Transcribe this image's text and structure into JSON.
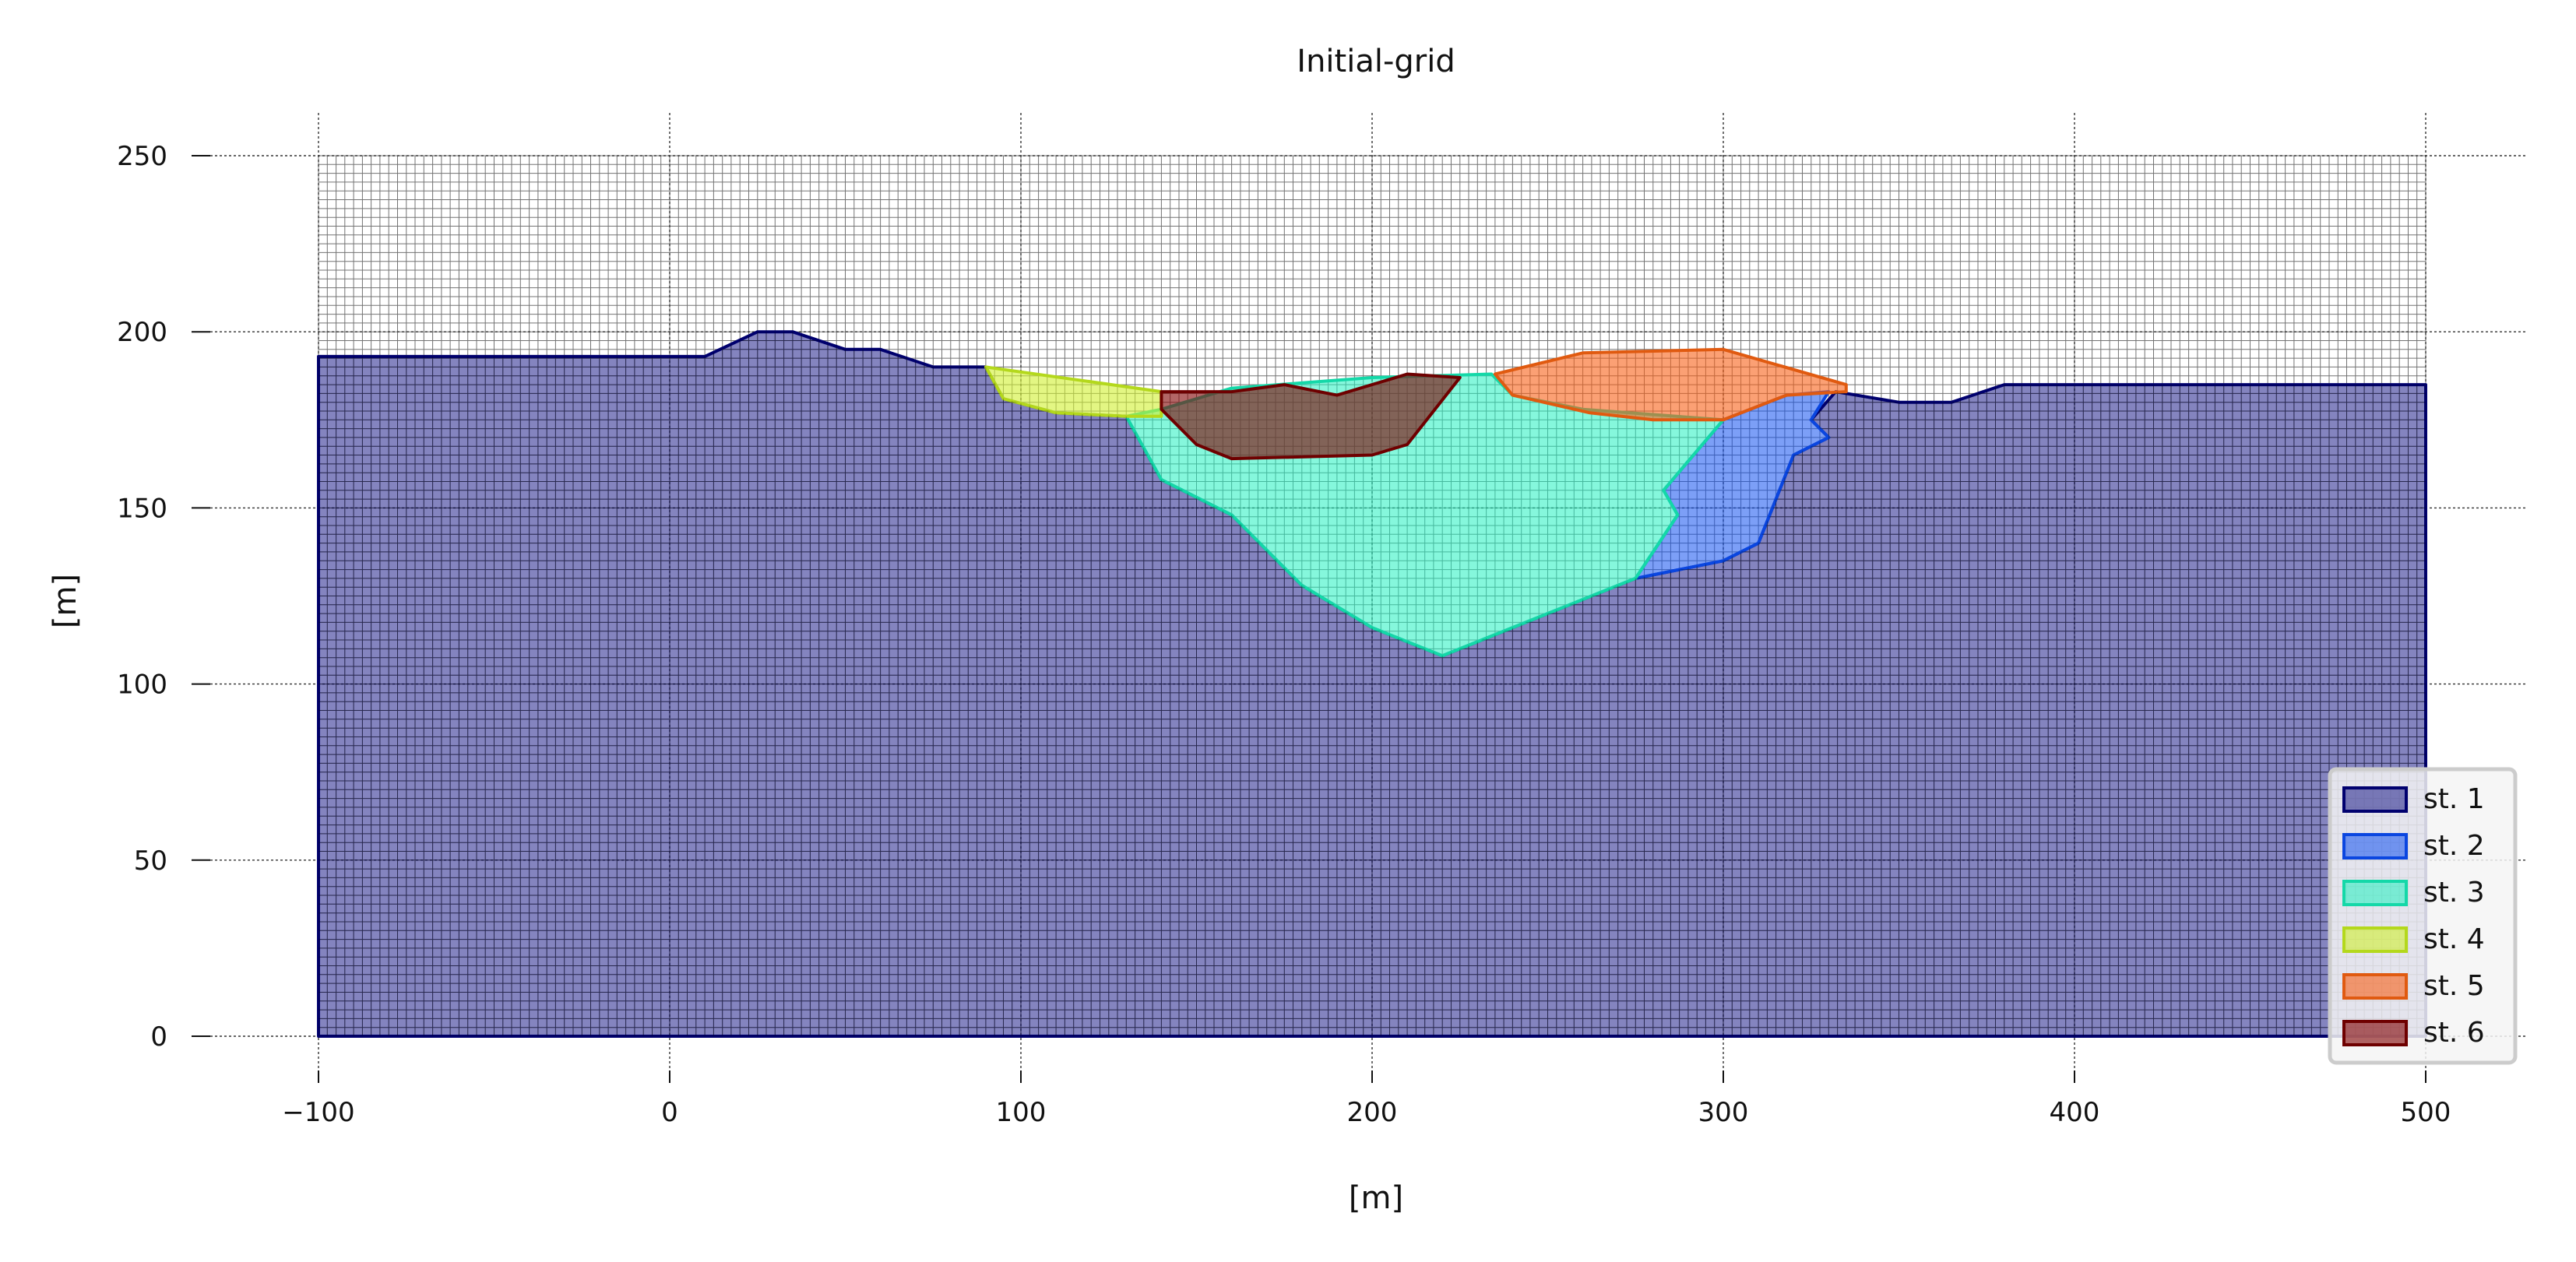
{
  "chart_data": {
    "type": "area",
    "title": "Initial-grid",
    "xlabel": "[m]",
    "ylabel": "[m]",
    "xlim": [
      -130,
      530
    ],
    "ylim": [
      -20,
      265
    ],
    "xticks": [
      -100,
      0,
      100,
      200,
      300,
      400,
      500
    ],
    "yticks": [
      0,
      50,
      100,
      150,
      200,
      250
    ],
    "xtick_labels": [
      "−100",
      "0",
      "100",
      "200",
      "300",
      "400",
      "500"
    ],
    "ytick_labels": [
      "0",
      "50",
      "100",
      "150",
      "200",
      "250"
    ],
    "grid": true,
    "mesh": {
      "x_range": [
        -100,
        500
      ],
      "y_range": [
        0,
        250
      ],
      "dx": 2.5,
      "dy": 2.5,
      "dy_upper": 1.25,
      "refine_above": 160
    },
    "legend": {
      "position": "lower right"
    },
    "series": [
      {
        "name": "st. 1",
        "fill": "#0a0a80",
        "edge": "#00006e",
        "opacity": 0.5,
        "points": [
          [
            -100,
            193
          ],
          [
            10,
            193
          ],
          [
            25,
            200
          ],
          [
            35,
            200
          ],
          [
            50,
            195
          ],
          [
            60,
            195
          ],
          [
            75,
            190
          ],
          [
            90,
            190
          ],
          [
            95,
            181
          ],
          [
            110,
            177
          ],
          [
            130,
            176
          ],
          [
            140,
            158
          ],
          [
            160,
            148
          ],
          [
            180,
            128
          ],
          [
            200,
            116
          ],
          [
            220,
            108
          ],
          [
            250,
            120
          ],
          [
            275,
            130
          ],
          [
            300,
            135
          ],
          [
            310,
            140
          ],
          [
            320,
            165
          ],
          [
            330,
            170
          ],
          [
            325,
            175
          ],
          [
            332,
            183
          ],
          [
            350,
            180
          ],
          [
            365,
            180
          ],
          [
            380,
            185
          ],
          [
            500,
            185
          ],
          [
            500,
            0
          ],
          [
            -100,
            0
          ]
        ]
      },
      {
        "name": "st. 2",
        "fill": "#1050f0",
        "edge": "#0a46e0",
        "opacity": 0.55,
        "points": [
          [
            300,
            175
          ],
          [
            318,
            182
          ],
          [
            330,
            183
          ],
          [
            325,
            175
          ],
          [
            330,
            170
          ],
          [
            320,
            165
          ],
          [
            310,
            140
          ],
          [
            300,
            135
          ],
          [
            275,
            130
          ],
          [
            287,
            148
          ],
          [
            283,
            155
          ]
        ]
      },
      {
        "name": "st. 3",
        "fill": "#20f0c0",
        "edge": "#14d8a8",
        "opacity": 0.55,
        "points": [
          [
            130,
            176
          ],
          [
            140,
            178
          ],
          [
            160,
            184
          ],
          [
            200,
            187
          ],
          [
            234,
            188
          ],
          [
            240,
            182
          ],
          [
            260,
            178
          ],
          [
            300,
            175
          ],
          [
            283,
            155
          ],
          [
            287,
            148
          ],
          [
            275,
            130
          ],
          [
            250,
            120
          ],
          [
            220,
            108
          ],
          [
            200,
            116
          ],
          [
            180,
            128
          ],
          [
            160,
            148
          ],
          [
            140,
            158
          ]
        ]
      },
      {
        "name": "st. 4",
        "fill": "#d0f030",
        "edge": "#b4d81c",
        "opacity": 0.6,
        "points": [
          [
            90,
            190
          ],
          [
            140,
            183
          ],
          [
            140,
            176
          ],
          [
            130,
            176
          ],
          [
            110,
            177
          ],
          [
            95,
            181
          ]
        ]
      },
      {
        "name": "st. 5",
        "fill": "#f86018",
        "edge": "#e05a10",
        "opacity": 0.6,
        "points": [
          [
            235,
            188
          ],
          [
            260,
            194
          ],
          [
            300,
            195
          ],
          [
            335,
            185
          ],
          [
            335,
            183
          ],
          [
            318,
            182
          ],
          [
            300,
            175
          ],
          [
            280,
            175
          ],
          [
            262,
            177
          ],
          [
            240,
            182
          ]
        ]
      },
      {
        "name": "st. 6",
        "fill": "#800000",
        "edge": "#6e0000",
        "opacity": 0.6,
        "points": [
          [
            140,
            183
          ],
          [
            160,
            183
          ],
          [
            175,
            185
          ],
          [
            190,
            182
          ],
          [
            210,
            188
          ],
          [
            225,
            187
          ],
          [
            210,
            168
          ],
          [
            200,
            165
          ],
          [
            160,
            164
          ],
          [
            150,
            168
          ],
          [
            140,
            178
          ]
        ]
      }
    ]
  }
}
